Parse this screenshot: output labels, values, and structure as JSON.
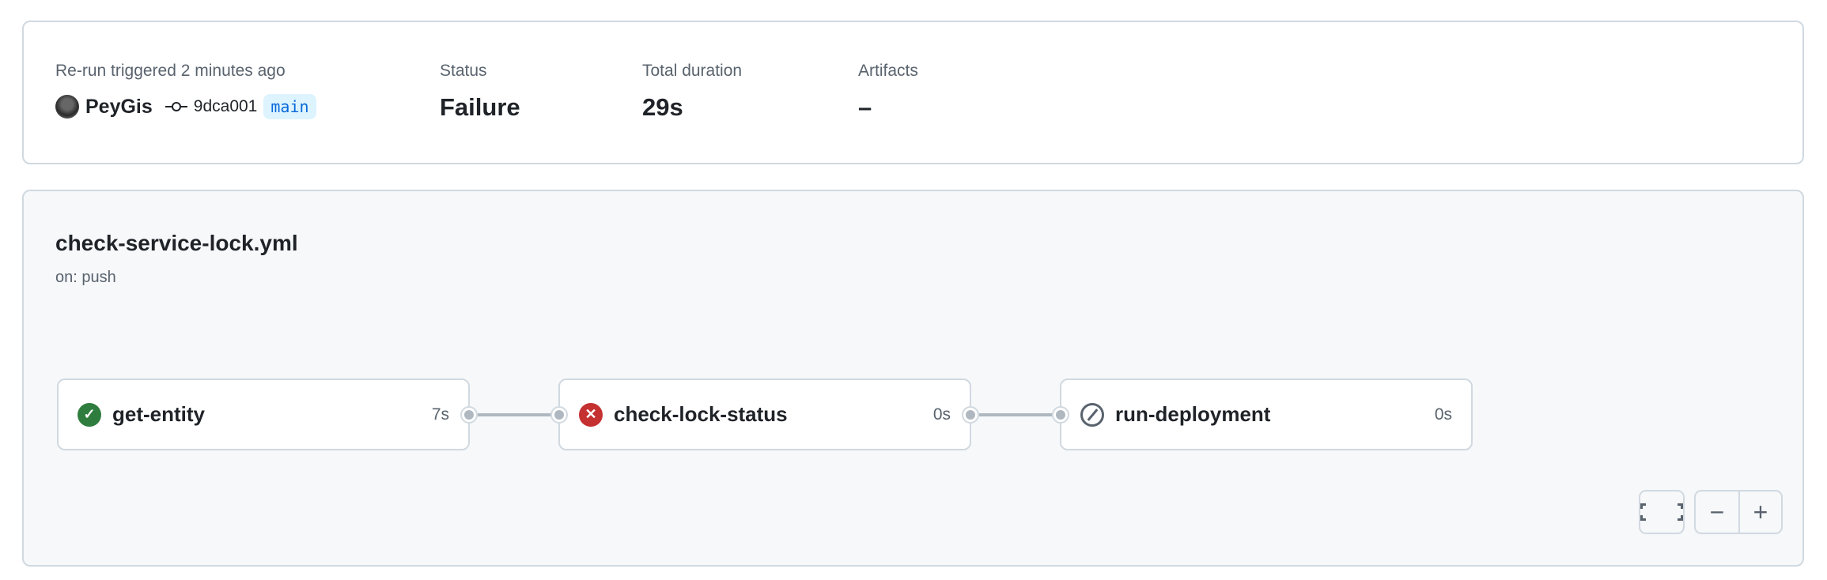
{
  "summary": {
    "trigger_label": "Re-run triggered 2 minutes ago",
    "actor": "PeyGis",
    "commit_sha": "9dca001",
    "branch": "main",
    "status_label": "Status",
    "status_value": "Failure",
    "duration_label": "Total duration",
    "duration_value": "29s",
    "artifacts_label": "Artifacts",
    "artifacts_value": "–"
  },
  "workflow": {
    "file": "check-service-lock.yml",
    "trigger": "on: push",
    "jobs": [
      {
        "name": "get-entity",
        "duration": "7s",
        "status": "success",
        "icon": "check-circle-icon"
      },
      {
        "name": "check-lock-status",
        "duration": "0s",
        "status": "failure",
        "icon": "x-circle-icon"
      },
      {
        "name": "run-deployment",
        "duration": "0s",
        "status": "skipped",
        "icon": "skip-icon"
      }
    ]
  },
  "colors": {
    "success": "#2f7d3e",
    "failure": "#c53030",
    "branch": "#0969da",
    "branch_bg": "#ddf4ff"
  },
  "controls": {
    "zoom_out": "−",
    "zoom_in": "+"
  }
}
